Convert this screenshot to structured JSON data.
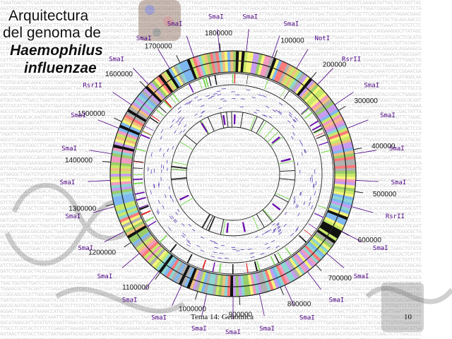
{
  "title": {
    "line1": "Arquitectura",
    "line2": "del genoma de",
    "line3": "Haemophilus",
    "line4": "influenzae"
  },
  "genome_map": {
    "coordinate_labels": [
      "100000",
      "200000",
      "300000",
      "400000",
      "500000",
      "600000",
      "700000",
      "800000",
      "900000",
      "1000000",
      "1100000",
      "1200000",
      "1300000",
      "1400000",
      "1500000",
      "1600000",
      "1700000",
      "1800000"
    ],
    "restriction_sites": [
      {
        "enzyme": "SmaI"
      },
      {
        "enzyme": "SmaI"
      },
      {
        "enzyme": "NotI"
      },
      {
        "enzyme": "RsrII"
      },
      {
        "enzyme": "SmaI"
      },
      {
        "enzyme": "SmaI"
      },
      {
        "enzyme": "SmaI"
      },
      {
        "enzyme": "SmaI"
      },
      {
        "enzyme": "RsrII"
      },
      {
        "enzyme": "SmaI"
      },
      {
        "enzyme": "SmaI"
      },
      {
        "enzyme": "SmaI"
      },
      {
        "enzyme": "SmaI"
      },
      {
        "enzyme": "SmaI"
      },
      {
        "enzyme": "SmaI"
      },
      {
        "enzyme": "SmaI"
      },
      {
        "enzyme": "SmaI"
      },
      {
        "enzyme": "SmaI"
      },
      {
        "enzyme": "SmaI"
      },
      {
        "enzyme": "SmaI"
      },
      {
        "enzyme": "SmaI"
      },
      {
        "enzyme": "SmaI"
      },
      {
        "enzyme": "SmaI"
      },
      {
        "enzyme": "SmaI"
      },
      {
        "enzyme": "RsrII"
      },
      {
        "enzyme": "SmaI"
      },
      {
        "enzyme": "SmaI"
      },
      {
        "enzyme": "SmaI"
      },
      {
        "enzyme": "SmaI"
      }
    ],
    "colors": {
      "outline": "#222222",
      "site_label": "#4b0082",
      "gene_palette": [
        "#c8e86a",
        "#f29ac0",
        "#8dd6d2",
        "#f5f57a",
        "#c79cf0",
        "#ff7a7a",
        "#9acd6a",
        "#7fb8f0",
        "#f0c080",
        "#b0b0b0"
      ]
    }
  },
  "footer": {
    "lecture": "Tema 14: Genómica",
    "page_number": "10"
  }
}
